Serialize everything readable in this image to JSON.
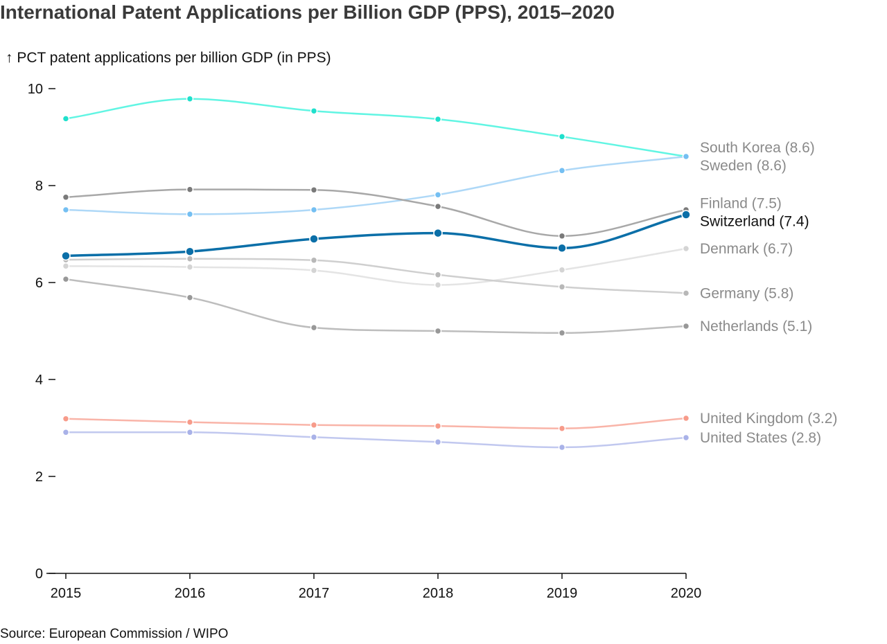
{
  "title": "International Patent Applications per Billion GDP (PPS), 2015–2020",
  "source": "Source: European Commission / WIPO",
  "chart_data": {
    "type": "line",
    "title": "International Patent Applications per Billion GDP (PPS), 2015–2020",
    "xlabel": "",
    "ylabel": "↑ PCT patent applications per billion GDP (in PPS)",
    "x": [
      2015,
      2016,
      2017,
      2018,
      2019,
      2020
    ],
    "ylim": [
      0,
      10
    ],
    "yticks": [
      0,
      2,
      4,
      6,
      8,
      10
    ],
    "grid": false,
    "legend": "direct labels at right end of lines",
    "highlight": "Switzerland",
    "series": [
      {
        "name": "South Korea",
        "label": "South Korea (8.6)",
        "color": "#61f5e3",
        "dot": "#1fe0cc",
        "label_color": "#8a8a8a",
        "values": [
          9.38,
          9.79,
          9.54,
          9.37,
          9.01,
          8.6
        ]
      },
      {
        "name": "Sweden",
        "label": "Sweden (8.6)",
        "color": "#aed8f7",
        "dot": "#74bff2",
        "label_color": "#8a8a8a",
        "values": [
          7.5,
          7.41,
          7.5,
          7.81,
          8.31,
          8.6
        ]
      },
      {
        "name": "Finland",
        "label": "Finland (7.5)",
        "color": "#a8a8a8",
        "dot": "#7a7a7a",
        "label_color": "#8a8a8a",
        "values": [
          7.76,
          7.92,
          7.91,
          7.57,
          6.96,
          7.5
        ]
      },
      {
        "name": "Switzerland",
        "label": "Switzerland (7.4)",
        "color": "#0b6fa8",
        "dot": "#0b6fa8",
        "label_color": "#111111",
        "values": [
          6.55,
          6.64,
          6.9,
          7.02,
          6.71,
          7.4
        ]
      },
      {
        "name": "Denmark",
        "label": "Denmark (6.7)",
        "color": "#e4e4e4",
        "dot": "#d4d4d4",
        "label_color": "#8a8a8a",
        "values": [
          6.34,
          6.32,
          6.25,
          5.95,
          6.26,
          6.7
        ]
      },
      {
        "name": "Germany",
        "label": "Germany (5.8)",
        "color": "#cfcfcf",
        "dot": "#b8b8b8",
        "label_color": "#8a8a8a",
        "values": [
          6.47,
          6.49,
          6.46,
          6.16,
          5.91,
          5.78
        ]
      },
      {
        "name": "Netherlands",
        "label": "Netherlands (5.1)",
        "color": "#bdbdbd",
        "dot": "#989898",
        "label_color": "#8a8a8a",
        "values": [
          6.07,
          5.69,
          5.07,
          5.0,
          4.96,
          5.1
        ]
      },
      {
        "name": "United Kingdom",
        "label": "United Kingdom (3.2)",
        "color": "#f9b4a8",
        "dot": "#f79b8a",
        "label_color": "#8a8a8a",
        "values": [
          3.19,
          3.12,
          3.06,
          3.04,
          2.99,
          3.2
        ]
      },
      {
        "name": "United States",
        "label": "United States (2.8)",
        "color": "#c1c8ef",
        "dot": "#a9b2e8",
        "label_color": "#8a8a8a",
        "values": [
          2.91,
          2.91,
          2.81,
          2.71,
          2.6,
          2.8
        ]
      }
    ]
  }
}
